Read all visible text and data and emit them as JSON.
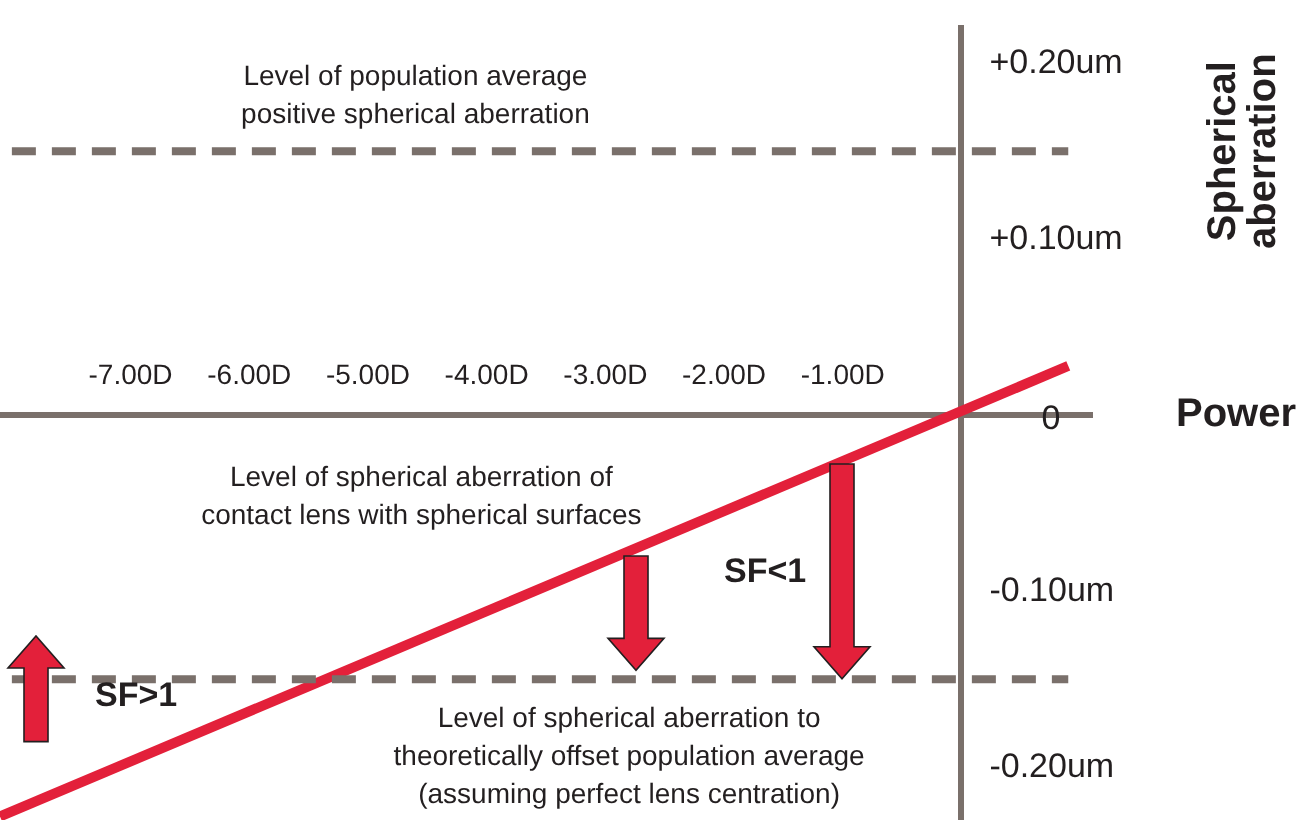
{
  "chart_data": {
    "type": "line",
    "xlabel": "Power",
    "ylabel": "Spherical aberration",
    "xlim": [
      -8.1,
      1.1
    ],
    "ylim": [
      -0.23,
      0.22
    ],
    "xticks": [
      {
        "value": -7,
        "label": "-7.00D"
      },
      {
        "value": -6,
        "label": "-6.00D"
      },
      {
        "value": -5,
        "label": "-5.00D"
      },
      {
        "value": -4,
        "label": "-4.00D"
      },
      {
        "value": -3,
        "label": "-3.00D"
      },
      {
        "value": -2,
        "label": "-2.00D"
      },
      {
        "value": -1,
        "label": "-1.00D"
      }
    ],
    "yticks": [
      {
        "value": 0.2,
        "label": "+0.20um"
      },
      {
        "value": 0.1,
        "label": "+0.10um"
      },
      {
        "value": 0,
        "label": "0"
      },
      {
        "value": -0.1,
        "label": "-0.10um"
      },
      {
        "value": -0.2,
        "label": "-0.20um"
      }
    ],
    "grid": false,
    "legend": false,
    "marker": "none",
    "line_style": "solid",
    "series": [
      {
        "name": "Level of spherical aberration of contact lens with spherical surfaces",
        "color": "#e3203a",
        "x": [
          -8.1,
          0.9
        ],
        "values": [
          -0.228,
          0.028
        ]
      }
    ],
    "ref_lines": [
      {
        "axis": "y",
        "value": 0.15,
        "label": "Level of population average positive spherical aberration",
        "color": "#7a706b",
        "line_style": "dashed"
      },
      {
        "axis": "y",
        "value": -0.15,
        "label": "Level of spherical aberration to theoretically offset population average (assuming perfect lens centration)",
        "color": "#7a706b",
        "line_style": "dashed"
      }
    ],
    "annotations": [
      "SF<1",
      "SF>1"
    ]
  }
}
